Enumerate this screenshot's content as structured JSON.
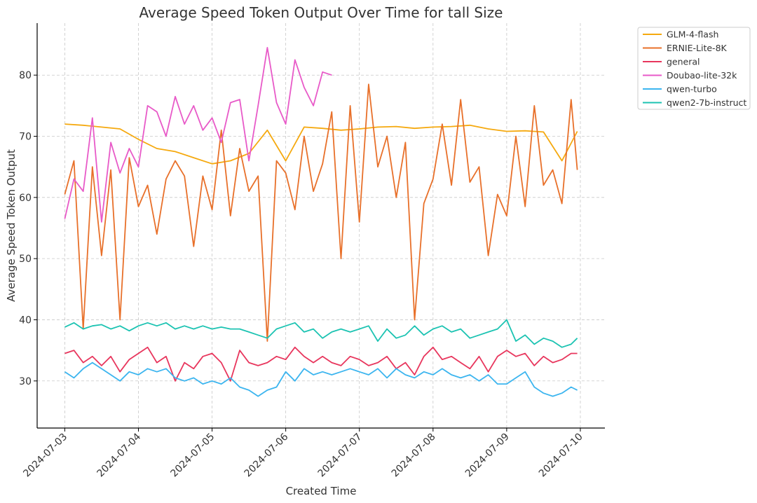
{
  "chart_data": {
    "type": "line",
    "title": "Average Speed Token Output Over Time for tall Size",
    "xlabel": "Created Time",
    "ylabel": "Average Speed Token Output",
    "x_start": "2024-07-03",
    "x_end": "2024-07-10",
    "xticks": [
      "2024-07-03",
      "2024-07-04",
      "2024-07-05",
      "2024-07-06",
      "2024-07-07",
      "2024-07-08",
      "2024-07-09",
      "2024-07-10"
    ],
    "xlim": [
      "2024-07-02 15:00",
      "2024-07-10 08:00"
    ],
    "yticks": [
      30,
      40,
      50,
      60,
      70,
      80
    ],
    "ylim": [
      22.3,
      88.5
    ],
    "grid": true,
    "legend_position": "outside-top-right",
    "series": [
      {
        "name": "GLM-4-flash",
        "color": "#f5a90f",
        "x": [
          "2024-07-03 00:00",
          "2024-07-03 06:00",
          "2024-07-03 12:00",
          "2024-07-03 18:00",
          "2024-07-04 00:00",
          "2024-07-04 06:00",
          "2024-07-04 12:00",
          "2024-07-04 18:00",
          "2024-07-05 00:00",
          "2024-07-05 06:00",
          "2024-07-05 12:00",
          "2024-07-05 18:00",
          "2024-07-06 00:00",
          "2024-07-06 06:00",
          "2024-07-06 12:00",
          "2024-07-06 18:00",
          "2024-07-07 00:00",
          "2024-07-07 06:00",
          "2024-07-07 12:00",
          "2024-07-07 18:00",
          "2024-07-08 00:00",
          "2024-07-08 06:00",
          "2024-07-08 12:00",
          "2024-07-08 18:00",
          "2024-07-09 00:00",
          "2024-07-09 06:00",
          "2024-07-09 12:00",
          "2024-07-09 18:00",
          "2024-07-09 23:00"
        ],
        "values": [
          72.0,
          71.8,
          71.5,
          71.2,
          69.5,
          68.0,
          67.5,
          66.5,
          65.5,
          66.0,
          67.2,
          71.0,
          66.0,
          71.5,
          71.3,
          71.0,
          71.2,
          71.5,
          71.6,
          71.3,
          71.5,
          71.6,
          71.8,
          71.2,
          70.8,
          70.9,
          70.7,
          66.0,
          70.8
        ]
      },
      {
        "name": "ERNIE-Lite-8K",
        "color": "#e8702a",
        "x": [
          "2024-07-03 00:00",
          "2024-07-03 03:00",
          "2024-07-03 06:00",
          "2024-07-03 09:00",
          "2024-07-03 12:00",
          "2024-07-03 15:00",
          "2024-07-03 18:00",
          "2024-07-03 21:00",
          "2024-07-04 00:00",
          "2024-07-04 03:00",
          "2024-07-04 06:00",
          "2024-07-04 09:00",
          "2024-07-04 12:00",
          "2024-07-04 15:00",
          "2024-07-04 18:00",
          "2024-07-04 21:00",
          "2024-07-05 00:00",
          "2024-07-05 03:00",
          "2024-07-05 06:00",
          "2024-07-05 09:00",
          "2024-07-05 12:00",
          "2024-07-05 15:00",
          "2024-07-05 18:00",
          "2024-07-05 21:00",
          "2024-07-06 00:00",
          "2024-07-06 03:00",
          "2024-07-06 06:00",
          "2024-07-06 09:00",
          "2024-07-06 12:00",
          "2024-07-06 15:00",
          "2024-07-06 18:00",
          "2024-07-06 21:00",
          "2024-07-07 00:00",
          "2024-07-07 03:00",
          "2024-07-07 06:00",
          "2024-07-07 09:00",
          "2024-07-07 12:00",
          "2024-07-07 15:00",
          "2024-07-07 18:00",
          "2024-07-07 21:00",
          "2024-07-08 00:00",
          "2024-07-08 03:00",
          "2024-07-08 06:00",
          "2024-07-08 09:00",
          "2024-07-08 12:00",
          "2024-07-08 15:00",
          "2024-07-08 18:00",
          "2024-07-08 21:00",
          "2024-07-09 00:00",
          "2024-07-09 03:00",
          "2024-07-09 06:00",
          "2024-07-09 09:00",
          "2024-07-09 12:00",
          "2024-07-09 15:00",
          "2024-07-09 18:00",
          "2024-07-09 21:00",
          "2024-07-09 23:00"
        ],
        "values": [
          60.5,
          66.0,
          38.5,
          65.0,
          50.5,
          64.5,
          40.0,
          66.5,
          58.5,
          62.0,
          54.0,
          63.0,
          66.0,
          63.5,
          52.0,
          63.5,
          58.0,
          71.0,
          57.0,
          68.0,
          61.0,
          63.5,
          36.5,
          66.0,
          64.0,
          58.0,
          70.0,
          61.0,
          65.5,
          74.0,
          50.0,
          75.0,
          56.0,
          78.5,
          65.0,
          70.0,
          60.0,
          69.0,
          40.0,
          59.0,
          63.0,
          72.0,
          62.0,
          76.0,
          62.5,
          65.0,
          50.5,
          60.5,
          57.0,
          70.0,
          58.5,
          75.0,
          62.0,
          64.5,
          59.0,
          76.0,
          64.5
        ]
      },
      {
        "name": "general",
        "color": "#e8365d",
        "x": [
          "2024-07-03 00:00",
          "2024-07-03 03:00",
          "2024-07-03 06:00",
          "2024-07-03 09:00",
          "2024-07-03 12:00",
          "2024-07-03 15:00",
          "2024-07-03 18:00",
          "2024-07-03 21:00",
          "2024-07-04 00:00",
          "2024-07-04 03:00",
          "2024-07-04 06:00",
          "2024-07-04 09:00",
          "2024-07-04 12:00",
          "2024-07-04 15:00",
          "2024-07-04 18:00",
          "2024-07-04 21:00",
          "2024-07-05 00:00",
          "2024-07-05 03:00",
          "2024-07-05 06:00",
          "2024-07-05 09:00",
          "2024-07-05 12:00",
          "2024-07-05 15:00",
          "2024-07-05 18:00",
          "2024-07-05 21:00",
          "2024-07-06 00:00",
          "2024-07-06 03:00",
          "2024-07-06 06:00",
          "2024-07-06 09:00",
          "2024-07-06 12:00",
          "2024-07-06 15:00",
          "2024-07-06 18:00",
          "2024-07-06 21:00",
          "2024-07-07 00:00",
          "2024-07-07 03:00",
          "2024-07-07 06:00",
          "2024-07-07 09:00",
          "2024-07-07 12:00",
          "2024-07-07 15:00",
          "2024-07-07 18:00",
          "2024-07-07 21:00",
          "2024-07-08 00:00",
          "2024-07-08 03:00",
          "2024-07-08 06:00",
          "2024-07-08 09:00",
          "2024-07-08 12:00",
          "2024-07-08 15:00",
          "2024-07-08 18:00",
          "2024-07-08 21:00",
          "2024-07-09 00:00",
          "2024-07-09 03:00",
          "2024-07-09 06:00",
          "2024-07-09 09:00",
          "2024-07-09 12:00",
          "2024-07-09 15:00",
          "2024-07-09 18:00",
          "2024-07-09 21:00",
          "2024-07-09 23:00"
        ],
        "values": [
          34.5,
          35.0,
          33.0,
          34.0,
          32.5,
          34.0,
          31.5,
          33.5,
          34.5,
          35.5,
          33.0,
          34.0,
          30.0,
          33.0,
          32.0,
          34.0,
          34.5,
          33.0,
          30.0,
          35.0,
          33.0,
          32.5,
          33.0,
          34.0,
          33.5,
          35.5,
          34.0,
          33.0,
          34.0,
          33.0,
          32.5,
          34.0,
          33.5,
          32.5,
          33.0,
          34.0,
          32.0,
          33.0,
          31.0,
          34.0,
          35.5,
          33.5,
          34.0,
          33.0,
          32.0,
          34.0,
          31.5,
          34.0,
          35.0,
          34.0,
          34.5,
          32.5,
          34.0,
          33.0,
          33.5,
          34.5,
          34.5
        ]
      },
      {
        "name": "Doubao-lite-32k",
        "color": "#e85ac8",
        "x": [
          "2024-07-03 00:00",
          "2024-07-03 03:00",
          "2024-07-03 06:00",
          "2024-07-03 09:00",
          "2024-07-03 12:00",
          "2024-07-03 15:00",
          "2024-07-03 18:00",
          "2024-07-03 21:00",
          "2024-07-04 00:00",
          "2024-07-04 03:00",
          "2024-07-04 06:00",
          "2024-07-04 09:00",
          "2024-07-04 12:00",
          "2024-07-04 15:00",
          "2024-07-04 18:00",
          "2024-07-04 21:00",
          "2024-07-05 00:00",
          "2024-07-05 03:00",
          "2024-07-05 06:00",
          "2024-07-05 09:00",
          "2024-07-05 12:00",
          "2024-07-05 15:00",
          "2024-07-05 18:00",
          "2024-07-05 21:00",
          "2024-07-06 00:00",
          "2024-07-06 03:00",
          "2024-07-06 06:00",
          "2024-07-06 09:00",
          "2024-07-06 12:00",
          "2024-07-06 15:00"
        ],
        "values": [
          56.5,
          63.0,
          61.0,
          73.0,
          56.0,
          69.0,
          64.0,
          68.0,
          65.0,
          75.0,
          74.0,
          70.0,
          76.5,
          72.0,
          75.0,
          71.0,
          73.0,
          69.0,
          75.5,
          76.0,
          66.0,
          75.0,
          84.5,
          75.5,
          72.0,
          82.5,
          78.0,
          75.0,
          80.5,
          80.0
        ]
      },
      {
        "name": "qwen-turbo",
        "color": "#3cb5ef",
        "x": [
          "2024-07-03 00:00",
          "2024-07-03 03:00",
          "2024-07-03 06:00",
          "2024-07-03 09:00",
          "2024-07-03 12:00",
          "2024-07-03 15:00",
          "2024-07-03 18:00",
          "2024-07-03 21:00",
          "2024-07-04 00:00",
          "2024-07-04 03:00",
          "2024-07-04 06:00",
          "2024-07-04 09:00",
          "2024-07-04 12:00",
          "2024-07-04 15:00",
          "2024-07-04 18:00",
          "2024-07-04 21:00",
          "2024-07-05 00:00",
          "2024-07-05 03:00",
          "2024-07-05 06:00",
          "2024-07-05 09:00",
          "2024-07-05 12:00",
          "2024-07-05 15:00",
          "2024-07-05 18:00",
          "2024-07-05 21:00",
          "2024-07-06 00:00",
          "2024-07-06 03:00",
          "2024-07-06 06:00",
          "2024-07-06 09:00",
          "2024-07-06 12:00",
          "2024-07-06 15:00",
          "2024-07-06 18:00",
          "2024-07-06 21:00",
          "2024-07-07 00:00",
          "2024-07-07 03:00",
          "2024-07-07 06:00",
          "2024-07-07 09:00",
          "2024-07-07 12:00",
          "2024-07-07 15:00",
          "2024-07-07 18:00",
          "2024-07-07 21:00",
          "2024-07-08 00:00",
          "2024-07-08 03:00",
          "2024-07-08 06:00",
          "2024-07-08 09:00",
          "2024-07-08 12:00",
          "2024-07-08 15:00",
          "2024-07-08 18:00",
          "2024-07-08 21:00",
          "2024-07-09 00:00",
          "2024-07-09 03:00",
          "2024-07-09 06:00",
          "2024-07-09 09:00",
          "2024-07-09 12:00",
          "2024-07-09 15:00",
          "2024-07-09 18:00",
          "2024-07-09 21:00",
          "2024-07-09 23:00"
        ],
        "values": [
          31.5,
          30.5,
          32.0,
          33.0,
          32.0,
          31.0,
          30.0,
          31.5,
          31.0,
          32.0,
          31.5,
          32.0,
          30.5,
          30.0,
          30.5,
          29.5,
          30.0,
          29.5,
          30.5,
          29.0,
          28.5,
          27.5,
          28.5,
          29.0,
          31.5,
          30.0,
          32.0,
          31.0,
          31.5,
          31.0,
          31.5,
          32.0,
          31.5,
          31.0,
          32.0,
          30.5,
          32.0,
          31.0,
          30.5,
          31.5,
          31.0,
          32.0,
          31.0,
          30.5,
          31.0,
          30.0,
          31.0,
          29.5,
          29.5,
          30.5,
          31.5,
          29.0,
          28.0,
          27.5,
          28.0,
          29.0,
          28.5
        ]
      },
      {
        "name": "qwen2-7b-instruct",
        "color": "#1cc3b2",
        "x": [
          "2024-07-03 00:00",
          "2024-07-03 03:00",
          "2024-07-03 06:00",
          "2024-07-03 09:00",
          "2024-07-03 12:00",
          "2024-07-03 15:00",
          "2024-07-03 18:00",
          "2024-07-03 21:00",
          "2024-07-04 00:00",
          "2024-07-04 03:00",
          "2024-07-04 06:00",
          "2024-07-04 09:00",
          "2024-07-04 12:00",
          "2024-07-04 15:00",
          "2024-07-04 18:00",
          "2024-07-04 21:00",
          "2024-07-05 00:00",
          "2024-07-05 03:00",
          "2024-07-05 06:00",
          "2024-07-05 09:00",
          "2024-07-05 12:00",
          "2024-07-05 15:00",
          "2024-07-05 18:00",
          "2024-07-05 21:00",
          "2024-07-06 00:00",
          "2024-07-06 03:00",
          "2024-07-06 06:00",
          "2024-07-06 09:00",
          "2024-07-06 12:00",
          "2024-07-06 15:00",
          "2024-07-06 18:00",
          "2024-07-06 21:00",
          "2024-07-07 00:00",
          "2024-07-07 03:00",
          "2024-07-07 06:00",
          "2024-07-07 09:00",
          "2024-07-07 12:00",
          "2024-07-07 15:00",
          "2024-07-07 18:00",
          "2024-07-07 21:00",
          "2024-07-08 00:00",
          "2024-07-08 03:00",
          "2024-07-08 06:00",
          "2024-07-08 09:00",
          "2024-07-08 12:00",
          "2024-07-08 15:00",
          "2024-07-08 18:00",
          "2024-07-08 21:00",
          "2024-07-09 00:00",
          "2024-07-09 03:00",
          "2024-07-09 06:00",
          "2024-07-09 09:00",
          "2024-07-09 12:00",
          "2024-07-09 15:00",
          "2024-07-09 18:00",
          "2024-07-09 21:00",
          "2024-07-09 23:00"
        ],
        "values": [
          38.8,
          39.5,
          38.5,
          39.0,
          39.2,
          38.5,
          39.0,
          38.2,
          39.0,
          39.5,
          39.0,
          39.5,
          38.5,
          39.0,
          38.5,
          39.0,
          38.5,
          38.8,
          38.5,
          38.5,
          38.0,
          37.5,
          37.0,
          38.5,
          39.0,
          39.5,
          38.0,
          38.5,
          37.0,
          38.0,
          38.5,
          38.0,
          38.5,
          39.0,
          36.5,
          38.5,
          37.0,
          37.5,
          39.0,
          37.5,
          38.5,
          39.0,
          38.0,
          38.5,
          37.0,
          37.5,
          38.0,
          38.5,
          40.0,
          36.5,
          37.5,
          36.0,
          37.0,
          36.5,
          35.5,
          36.0,
          37.0
        ]
      }
    ]
  }
}
